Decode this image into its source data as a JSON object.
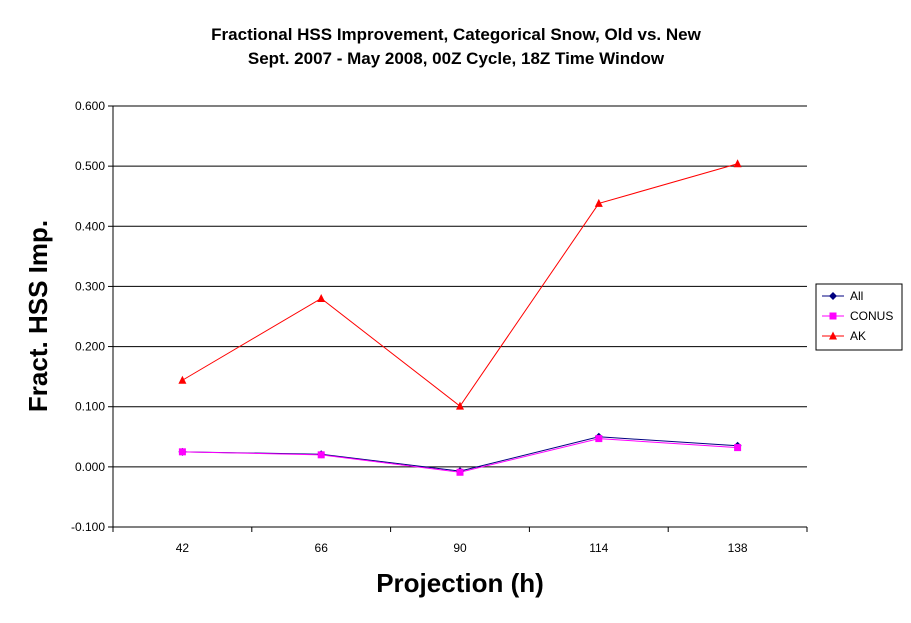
{
  "chart_data": {
    "type": "line",
    "title": "Fractional HSS Improvement, Categorical Snow, Old vs. New",
    "subtitle": "Sept. 2007 - May 2008, 00Z Cycle, 18Z Time Window",
    "xlabel": "Projection (h)",
    "ylabel": "Fract. HSS Imp.",
    "categories": [
      "42",
      "66",
      "90",
      "114",
      "138"
    ],
    "ylim": [
      -0.1,
      0.6
    ],
    "yticks": [
      "-0.100",
      "0.000",
      "0.100",
      "0.200",
      "0.300",
      "0.400",
      "0.500",
      "0.600"
    ],
    "grid": true,
    "legend_position": "right",
    "series": [
      {
        "name": "All",
        "color": "#000080",
        "marker": "diamond",
        "values": [
          0.025,
          0.021,
          -0.007,
          0.05,
          0.035
        ]
      },
      {
        "name": "CONUS",
        "color": "#FF00FF",
        "marker": "square",
        "values": [
          0.025,
          0.02,
          -0.009,
          0.047,
          0.032
        ]
      },
      {
        "name": "AK",
        "color": "#FF0000",
        "marker": "triangle",
        "values": [
          0.144,
          0.28,
          0.101,
          0.438,
          0.504
        ]
      }
    ]
  }
}
